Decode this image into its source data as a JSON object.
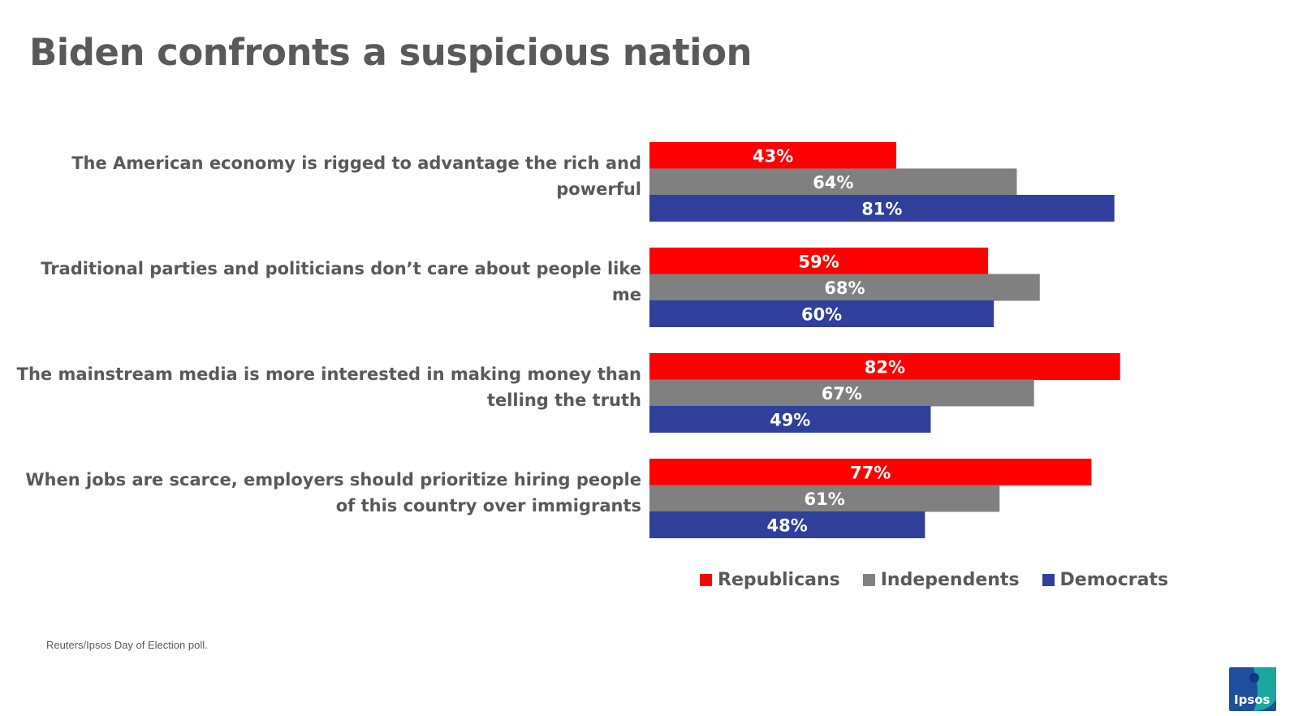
{
  "title": "Biden confronts a suspicious nation",
  "source": "Reuters/Ipsos Day of Election poll.",
  "logo_text": "Ipsos",
  "colors": {
    "republicans": "#FF0000",
    "independents": "#808080",
    "democrats": "#2F3F9B",
    "text": "#595959",
    "logo_blue": "#1F4E9D",
    "logo_teal": "#19A7A0"
  },
  "legend": [
    {
      "label": "Republicans",
      "color": "#FF0000"
    },
    {
      "label": "Independents",
      "color": "#808080"
    },
    {
      "label": "Democrats",
      "color": "#2F3F9B"
    }
  ],
  "chart_data": {
    "type": "bar",
    "orientation": "horizontal",
    "title": "Biden confronts a suspicious nation",
    "categories": [
      [
        "The American economy is rigged to advantage the rich and",
        "powerful"
      ],
      [
        "Traditional parties and politicians don’t care about people like",
        "me"
      ],
      [
        "The mainstream media is more interested in making money than",
        "telling the truth"
      ],
      [
        "When jobs are scarce, employers should prioritize hiring people",
        "of this country over immigrants"
      ]
    ],
    "series": [
      {
        "name": "Republicans",
        "color": "#FF0000",
        "values": [
          43,
          59,
          82,
          77
        ]
      },
      {
        "name": "Independents",
        "color": "#808080",
        "values": [
          64,
          68,
          67,
          61
        ]
      },
      {
        "name": "Democrats",
        "color": "#2F3F9B",
        "values": [
          81,
          60,
          49,
          48
        ]
      }
    ],
    "value_suffix": "%",
    "xlim": [
      0,
      100
    ],
    "grid": false,
    "legend_position": "bottom"
  }
}
